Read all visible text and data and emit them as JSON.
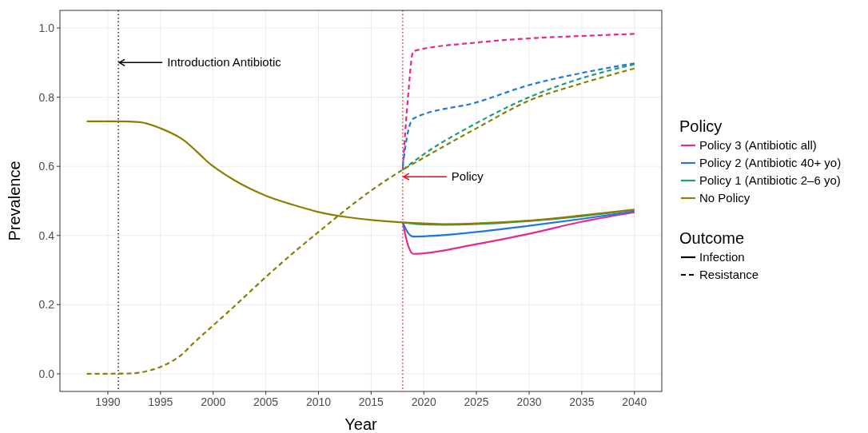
{
  "chart_data": {
    "type": "line",
    "xlabel": "Year",
    "ylabel": "Prevalence",
    "legend_title": "Policy",
    "xlim": [
      1985.45,
      2042.6
    ],
    "ylim": [
      -0.051,
      1.051
    ],
    "xticks": [
      1990,
      1995,
      2000,
      2005,
      2010,
      2015,
      2020,
      2025,
      2030,
      2035,
      2040
    ],
    "yticks": [
      {
        "value": 0,
        "label": "0.0"
      },
      0.2,
      0.4,
      0.6,
      0.8,
      {
        "value": 1,
        "label": "1.0"
      }
    ],
    "grid": true,
    "legend": "right",
    "ref_lines": [
      {
        "axis": "x",
        "value": 1991,
        "color": "#000000",
        "line_style": "dotted"
      },
      {
        "axis": "x",
        "value": 2018,
        "color": "#ff0000",
        "line_style": "dotted"
      }
    ],
    "annotations": [
      {
        "text": "Introduction Antibiotic",
        "x": 1991,
        "y": 0.9
      },
      {
        "text": "Policy",
        "x": 2018,
        "y": 0.57
      },
      "Outcome",
      "Infection",
      "Resistance"
    ],
    "series": [
      {
        "name": "Policy 3 (Antibiotic all)",
        "line_style": "solid",
        "color": "#e7298a",
        "x": [
          2018,
          2018.5,
          2019,
          2025,
          2030,
          2035,
          2040
        ],
        "values": [
          0.438,
          0.372,
          0.347,
          0.375,
          0.405,
          0.44,
          0.467
        ]
      },
      {
        "line_style": "dashed",
        "color": "#e7298a",
        "x": [
          2018,
          2018.5,
          2019,
          2025,
          2030,
          2035,
          2040
        ],
        "values": [
          0.592,
          0.8,
          0.933,
          0.958,
          0.97,
          0.977,
          0.983
        ]
      },
      {
        "name": "Policy 2 (Antibiotic 40+ yo)",
        "line_style": "solid",
        "color": "#1f78e0",
        "x": [
          2018,
          2018.5,
          2019,
          2025,
          2030,
          2035,
          2040
        ],
        "values": [
          0.438,
          0.408,
          0.397,
          0.41,
          0.428,
          0.448,
          0.47
        ]
      },
      {
        "line_style": "dashed",
        "color": "#1f78e0",
        "x": [
          2018,
          2018.5,
          2019,
          2025,
          2030,
          2035,
          2040
        ],
        "values": [
          0.6,
          0.7,
          0.738,
          0.785,
          0.835,
          0.87,
          0.898
        ]
      },
      {
        "name": "Policy 1 (Antibiotic 2–6 yo)",
        "line_style": "solid",
        "color": "#1b9e77",
        "x": [
          2018,
          2020,
          2022,
          2025,
          2030,
          2035,
          2040
        ],
        "values": [
          0.438,
          0.432,
          0.431,
          0.433,
          0.442,
          0.456,
          0.474
        ]
      },
      {
        "line_style": "dashed",
        "color": "#1b9e77",
        "x": [
          2018,
          2020,
          2025,
          2030,
          2035,
          2040
        ],
        "values": [
          0.59,
          0.635,
          0.725,
          0.8,
          0.855,
          0.895
        ]
      },
      {
        "name": "No Policy",
        "line_style": "solid",
        "color": "#8c7e00",
        "x": [
          1988,
          1991,
          1993,
          1995,
          1997,
          2000,
          2002,
          2005,
          2008,
          2010,
          2013,
          2015,
          2018,
          2020,
          2022,
          2025,
          2030,
          2035,
          2040
        ],
        "values": [
          0.73,
          0.73,
          0.728,
          0.71,
          0.68,
          0.6,
          0.56,
          0.515,
          0.485,
          0.468,
          0.452,
          0.445,
          0.438,
          0.435,
          0.433,
          0.435,
          0.443,
          0.458,
          0.475
        ]
      },
      {
        "line_style": "dashed",
        "color": "#8c7e00",
        "x": [
          1988,
          1992,
          1994,
          1995,
          1996,
          1997,
          1998,
          2000,
          2002,
          2005,
          2008,
          2010,
          2012,
          2015,
          2018,
          2020,
          2025,
          2030,
          2035,
          2040
        ],
        "values": [
          0,
          0.001,
          0.01,
          0.02,
          0.035,
          0.055,
          0.085,
          0.14,
          0.195,
          0.28,
          0.36,
          0.41,
          0.46,
          0.53,
          0.59,
          0.625,
          0.71,
          0.79,
          0.84,
          0.883
        ]
      }
    ]
  }
}
